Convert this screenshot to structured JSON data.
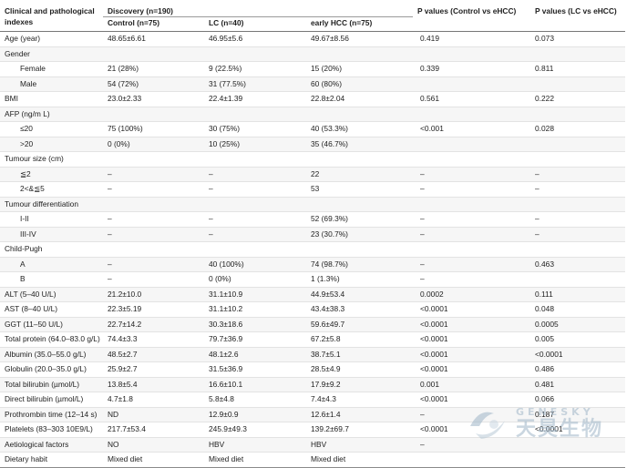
{
  "header": {
    "first_col": "Clinical and pathological indexes",
    "group": "Discovery (n=190)",
    "cols": [
      "Control (n=75)",
      "LC (n=40)",
      "early HCC (n=75)"
    ],
    "p1": "P values (Control vs eHCC)",
    "p2": "P values (LC vs eHCC)"
  },
  "rows": [
    {
      "label": "Age (year)",
      "indent": false,
      "v": [
        "48.65±6.61",
        "46.95±5.6",
        "49.67±8.56",
        "0.419",
        "0.073"
      ]
    },
    {
      "label": "Gender",
      "indent": false,
      "v": [
        "",
        "",
        "",
        "",
        ""
      ]
    },
    {
      "label": "Female",
      "indent": true,
      "v": [
        "21 (28%)",
        "9 (22.5%)",
        "15 (20%)",
        "0.339",
        "0.811"
      ]
    },
    {
      "label": "Male",
      "indent": true,
      "v": [
        "54 (72%)",
        "31 (77.5%)",
        "60 (80%)",
        "",
        ""
      ]
    },
    {
      "label": "BMI",
      "indent": false,
      "v": [
        "23.0±2.33",
        "22.4±1.39",
        "22.8±2.04",
        "0.561",
        "0.222"
      ]
    },
    {
      "label": "AFP (ng/m L)",
      "indent": false,
      "v": [
        "",
        "",
        "",
        "",
        ""
      ]
    },
    {
      "label": "≤20",
      "indent": true,
      "v": [
        "75 (100%)",
        "30 (75%)",
        "40 (53.3%)",
        "<0.001",
        "0.028"
      ]
    },
    {
      "label": ">20",
      "indent": true,
      "v": [
        "0 (0%)",
        "10 (25%)",
        "35 (46.7%)",
        "",
        ""
      ]
    },
    {
      "label": "Tumour size (cm)",
      "indent": false,
      "v": [
        "",
        "",
        "",
        "",
        ""
      ]
    },
    {
      "label": "≦2",
      "indent": true,
      "v": [
        "–",
        "–",
        "22",
        "–",
        "–"
      ]
    },
    {
      "label": "2<&≦5",
      "indent": true,
      "v": [
        "–",
        "–",
        "53",
        "–",
        "–"
      ]
    },
    {
      "label": "Tumour differentiation",
      "indent": false,
      "v": [
        "",
        "",
        "",
        "",
        ""
      ]
    },
    {
      "label": "I-II",
      "indent": true,
      "v": [
        "–",
        "–",
        "52 (69.3%)",
        "–",
        "–"
      ]
    },
    {
      "label": "III-IV",
      "indent": true,
      "v": [
        "–",
        "–",
        "23 (30.7%)",
        "–",
        "–"
      ]
    },
    {
      "label": "Child-Pugh",
      "indent": false,
      "v": [
        "",
        "",
        "",
        "",
        ""
      ]
    },
    {
      "label": "A",
      "indent": true,
      "v": [
        "–",
        "40 (100%)",
        "74 (98.7%)",
        "–",
        "0.463"
      ]
    },
    {
      "label": "B",
      "indent": true,
      "v": [
        "–",
        "0 (0%)",
        "1 (1.3%)",
        "–",
        ""
      ]
    },
    {
      "label": "ALT (5–40 U/L)",
      "indent": false,
      "v": [
        "21.2±10.0",
        "31.1±10.9",
        "44.9±53.4",
        "0.0002",
        "0.111"
      ]
    },
    {
      "label": "AST (8–40 U/L)",
      "indent": false,
      "v": [
        "22.3±5.19",
        "31.1±10.2",
        "43.4±38.3",
        "<0.0001",
        "0.048"
      ]
    },
    {
      "label": "GGT (11–50 U/L)",
      "indent": false,
      "v": [
        "22.7±14.2",
        "30.3±18.6",
        "59.6±49.7",
        "<0.0001",
        "0.0005"
      ]
    },
    {
      "label": "Total protein (64.0–83.0 g/L)",
      "indent": false,
      "v": [
        "74.4±3.3",
        "79.7±36.9",
        "67.2±5.8",
        "<0.0001",
        "0.005"
      ]
    },
    {
      "label": "Albumin (35.0–55.0 g/L)",
      "indent": false,
      "v": [
        "48.5±2.7",
        "48.1±2.6",
        "38.7±5.1",
        "<0.0001",
        "<0.0001"
      ]
    },
    {
      "label": "Globulin (20.0–35.0 g/L)",
      "indent": false,
      "v": [
        "25.9±2.7",
        "31.5±36.9",
        "28.5±4.9",
        "<0.0001",
        "0.486"
      ]
    },
    {
      "label": "Total bilirubin (µmol/L)",
      "indent": false,
      "v": [
        "13.8±5.4",
        "16.6±10.1",
        "17.9±9.2",
        "0.001",
        "0.481"
      ]
    },
    {
      "label": "Direct bilirubin (µmol/L)",
      "indent": false,
      "v": [
        "4.7±1.8",
        "5.8±4.8",
        "7.4±4.3",
        "<0.0001",
        "0.066"
      ]
    },
    {
      "label": "Prothrombin time (12–14 s)",
      "indent": false,
      "v": [
        "ND",
        "12.9±0.9",
        "12.6±1.4",
        "–",
        "0.187"
      ]
    },
    {
      "label": "Platelets (83–303 10E9/L)",
      "indent": false,
      "v": [
        "217.7±53.4",
        "245.9±49.3",
        "139.2±69.7",
        "<0.0001",
        "<0.0001"
      ]
    },
    {
      "label": "Aetiological factors",
      "indent": false,
      "v": [
        "NO",
        "HBV",
        "HBV",
        "–",
        ""
      ]
    },
    {
      "label": "Dietary habit",
      "indent": false,
      "v": [
        "Mixed diet",
        "Mixed diet",
        "Mixed diet",
        "",
        ""
      ]
    }
  ],
  "watermark": {
    "brand_en": "GENESKY",
    "brand_cn": "天昊生物",
    "logo_color": "#9fb6c8"
  }
}
